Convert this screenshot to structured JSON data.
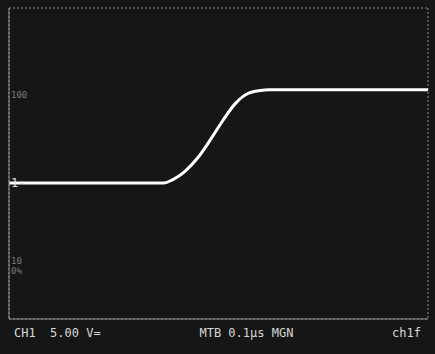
{
  "chart_data": {
    "type": "line",
    "x": [
      0,
      0.2,
      0.37,
      0.39,
      0.42,
      0.45,
      0.48,
      0.51,
      0.54,
      0.57,
      0.6,
      0.62,
      0.8,
      1.0
    ],
    "values": [
      0,
      0,
      0,
      0.4,
      1.5,
      3.2,
      5.5,
      8,
      10.2,
      11.5,
      11.9,
      12,
      12,
      12
    ],
    "color": "#ffffff",
    "xlim": [
      0,
      1
    ],
    "xticks": [
      0,
      0.1,
      0.2,
      0.3,
      0.4,
      0.5,
      0.6,
      0.7,
      0.8,
      0.9,
      1
    ],
    "ylim": [
      -17.5,
      22.5
    ],
    "yticks": [
      -17.5,
      -12.5,
      -7.5,
      -2.5,
      2.5,
      7.5,
      12.5,
      17.5,
      22.5
    ],
    "grid": true,
    "tick_labels": false,
    "marker_label": {
      "text": "1-",
      "y": 0
    },
    "annotations": [
      {
        "text": "100",
        "y": 11.3
      },
      {
        "text": "10",
        "y": -10
      },
      {
        "text": "0%",
        "y": -11.3
      }
    ],
    "status": [
      "CH1  5.00 V=",
      "MTB 0.1μs MGN",
      "ch1f"
    ]
  }
}
